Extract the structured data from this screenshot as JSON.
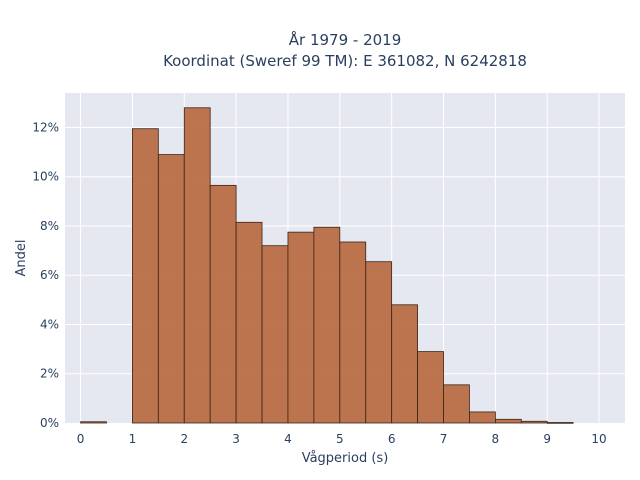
{
  "chart_data": {
    "type": "bar",
    "title_lines": [
      "År 1979 - 2019",
      "Koordinat (Sweref 99 TM): E 361082, N 6242818"
    ],
    "xlabel": "Vågperiod (s)",
    "ylabel": "Andel",
    "x_ticks": [
      "0",
      "1",
      "2",
      "3",
      "4",
      "5",
      "6",
      "7",
      "8",
      "9",
      "10"
    ],
    "y_ticks": [
      "0%",
      "2%",
      "4%",
      "6%",
      "8%",
      "10%",
      "12%"
    ],
    "xlim": [
      -0.3,
      10.5
    ],
    "ylim": [
      0,
      13.4
    ],
    "grid": true,
    "bar_color": "#b86e45",
    "edge_color": "#3b2417",
    "plot_bg": "#e5e8f1",
    "bins": [
      {
        "x0": 0.0,
        "x1": 0.5,
        "value": 0.05
      },
      {
        "x0": 1.0,
        "x1": 1.5,
        "value": 11.95
      },
      {
        "x0": 1.5,
        "x1": 2.0,
        "value": 10.9
      },
      {
        "x0": 2.0,
        "x1": 2.5,
        "value": 12.8
      },
      {
        "x0": 2.5,
        "x1": 3.0,
        "value": 9.65
      },
      {
        "x0": 3.0,
        "x1": 3.5,
        "value": 8.15
      },
      {
        "x0": 3.5,
        "x1": 4.0,
        "value": 7.2
      },
      {
        "x0": 4.0,
        "x1": 4.5,
        "value": 7.75
      },
      {
        "x0": 4.5,
        "x1": 5.0,
        "value": 7.95
      },
      {
        "x0": 5.0,
        "x1": 5.5,
        "value": 7.35
      },
      {
        "x0": 5.5,
        "x1": 6.0,
        "value": 6.55
      },
      {
        "x0": 6.0,
        "x1": 6.5,
        "value": 4.8
      },
      {
        "x0": 6.5,
        "x1": 7.0,
        "value": 2.9
      },
      {
        "x0": 7.0,
        "x1": 7.5,
        "value": 1.55
      },
      {
        "x0": 7.5,
        "x1": 8.0,
        "value": 0.45
      },
      {
        "x0": 8.0,
        "x1": 8.5,
        "value": 0.15
      },
      {
        "x0": 8.5,
        "x1": 9.0,
        "value": 0.07
      },
      {
        "x0": 9.0,
        "x1": 9.5,
        "value": 0.02
      }
    ]
  }
}
